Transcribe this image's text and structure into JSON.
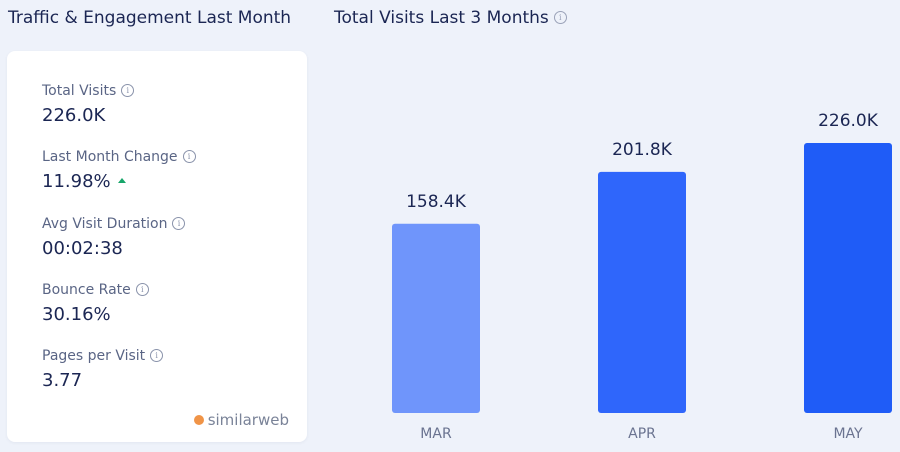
{
  "left_panel": {
    "title": "Traffic & Engagement Last Month",
    "metrics": [
      {
        "label": "Total Visits",
        "value": "226.0K"
      },
      {
        "label": "Last Month Change",
        "value": "11.98%",
        "trend": "up"
      },
      {
        "label": "Avg Visit Duration",
        "value": "00:02:38"
      },
      {
        "label": "Bounce Rate",
        "value": "30.16%"
      },
      {
        "label": "Pages per Visit",
        "value": "3.77"
      }
    ],
    "brand": "similarweb",
    "info_glyph": "i"
  },
  "colors": {
    "bar_light": "#6f95fb",
    "bar_mid": "#2f66fb",
    "bar_dark": "#1f5cf7",
    "trend_up": "#17a66a",
    "brand_mark": "#f09447"
  },
  "chart_data": {
    "type": "bar",
    "title": "Total Visits Last 3 Months",
    "categories": [
      "MAR",
      "APR",
      "MAY"
    ],
    "values": [
      158.4,
      201.8,
      226.0
    ],
    "value_labels": [
      "158.4K",
      "201.8K",
      "226.0K"
    ],
    "unit": "K",
    "ylim": [
      0,
      226.0
    ],
    "grid": false,
    "legend": "none"
  }
}
